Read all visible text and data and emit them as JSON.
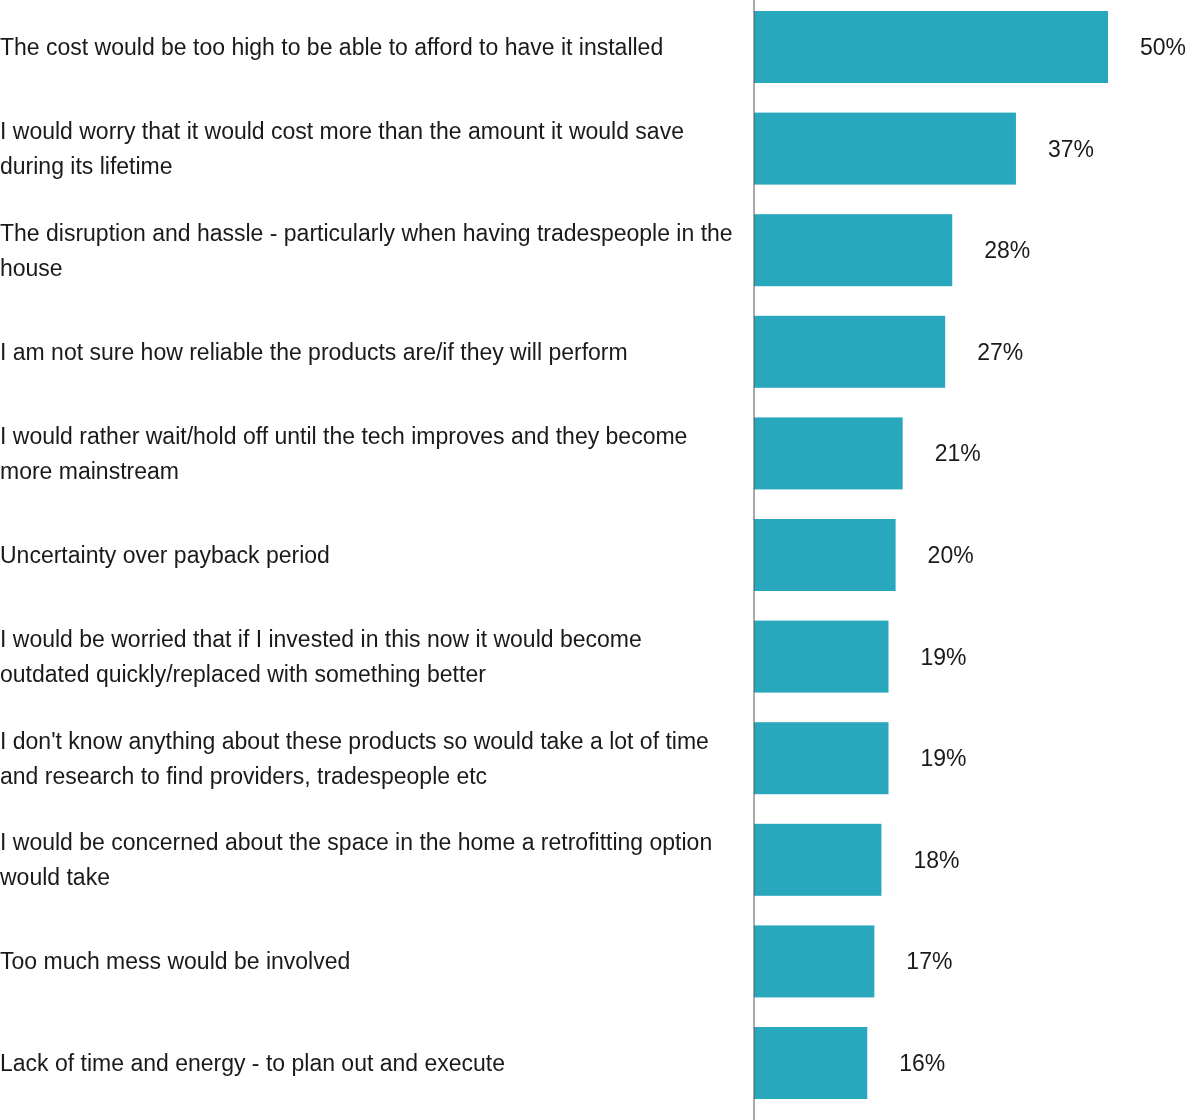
{
  "chart_data": {
    "type": "bar",
    "orientation": "horizontal",
    "categories": [
      "The cost would be too high to be able to afford to have it installed",
      "I would worry that it would cost more than the amount it would save during its lifetime",
      "The disruption and hassle - particularly when having tradespeople in the house",
      "I am not sure how reliable the products are/if they will perform",
      "I would rather wait/hold off until the tech improves and they become more mainstream",
      "Uncertainty over payback period",
      "I would be worried that if I invested in this now it would become outdated quickly/replaced with something better",
      "I don't know anything about these products so would take a lot of time and research to find providers, tradespeople etc",
      "I would be concerned about the space in the home a retrofitting option would take",
      "Too much mess would be involved",
      "Lack of time and energy - to plan out and execute"
    ],
    "values": [
      50,
      37,
      28,
      27,
      21,
      20,
      19,
      19,
      18,
      17,
      16
    ],
    "value_labels": [
      "50%",
      "37%",
      "28%",
      "27%",
      "21%",
      "20%",
      "19%",
      "19%",
      "18%",
      "17%",
      "16%"
    ],
    "color": "#29a7bd"
  }
}
